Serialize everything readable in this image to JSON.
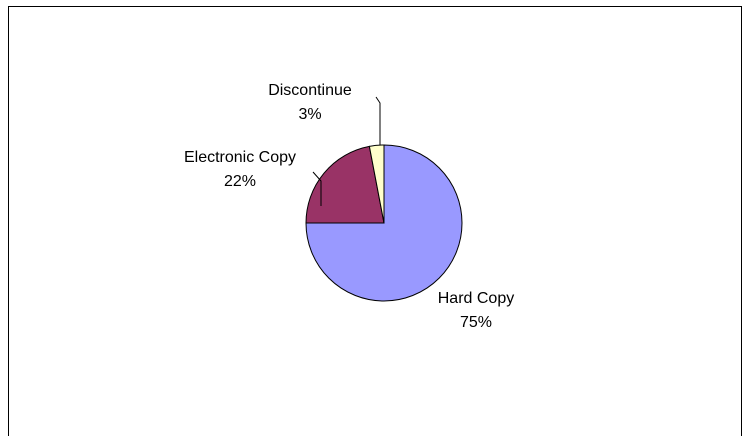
{
  "chart_data": {
    "type": "pie",
    "title": "",
    "slices": [
      {
        "label": "Hard Copy",
        "value": 75,
        "value_label": "75%",
        "color": "#9999FF"
      },
      {
        "label": "Electronic Copy",
        "value": 22,
        "value_label": "22%",
        "color": "#993366"
      },
      {
        "label": "Discontinue",
        "value": 3,
        "value_label": "3%",
        "color": "#FFFFCC"
      }
    ],
    "start_angle_deg": 90,
    "direction": "clockwise",
    "legend": "none",
    "label_style": "category name and percent with leader lines"
  }
}
